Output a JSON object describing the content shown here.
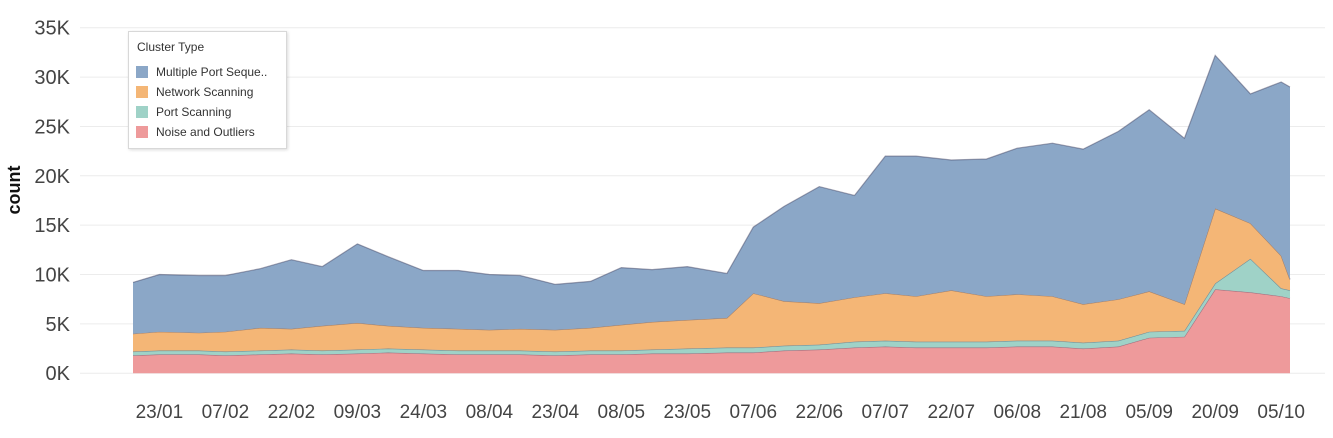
{
  "chart_data": {
    "type": "area",
    "stacked": true,
    "ylabel": "count",
    "xlabel": "",
    "ylim": [
      -1500,
      37000
    ],
    "yticks": [
      {
        "value": 0,
        "label": "0K"
      },
      {
        "value": 5000,
        "label": "5K"
      },
      {
        "value": 10000,
        "label": "10K"
      },
      {
        "value": 15000,
        "label": "15K"
      },
      {
        "value": 20000,
        "label": "20K"
      },
      {
        "value": 25000,
        "label": "25K"
      },
      {
        "value": 30000,
        "label": "30K"
      },
      {
        "value": 35000,
        "label": "35K"
      }
    ],
    "grid": true,
    "x": [
      "17/01",
      "23/01",
      "01/02",
      "07/02",
      "15/02",
      "22/02",
      "01/03",
      "09/03",
      "16/03",
      "24/03",
      "01/04",
      "08/04",
      "15/04",
      "23/04",
      "01/05",
      "08/05",
      "15/05",
      "23/05",
      "01/06",
      "07/06",
      "14/06",
      "22/06",
      "30/06",
      "07/07",
      "14/07",
      "22/07",
      "30/07",
      "06/08",
      "14/08",
      "21/08",
      "29/08",
      "05/09",
      "13/09",
      "20/09",
      "28/09",
      "05/10",
      "07/10"
    ],
    "xticks": [
      "23/01",
      "07/02",
      "22/02",
      "09/03",
      "24/03",
      "08/04",
      "23/04",
      "08/05",
      "23/05",
      "07/06",
      "22/06",
      "07/07",
      "22/07",
      "06/08",
      "21/08",
      "05/09",
      "20/09",
      "05/10"
    ],
    "series": [
      {
        "name": "Noise and Outliers",
        "color": "#ee9a9b",
        "values": [
          1800,
          1900,
          1900,
          1800,
          1900,
          2000,
          1900,
          2000,
          2100,
          2000,
          1900,
          1900,
          1900,
          1800,
          1900,
          1900,
          2000,
          2000,
          2100,
          2100,
          2300,
          2400,
          2600,
          2700,
          2600,
          2600,
          2600,
          2700,
          2700,
          2500,
          2700,
          3600,
          3700,
          8500,
          8200,
          7800,
          7600
        ]
      },
      {
        "name": "Port Scanning",
        "color": "#9fd2c7",
        "values": [
          400,
          400,
          400,
          400,
          400,
          400,
          400,
          400,
          400,
          400,
          400,
          400,
          400,
          400,
          400,
          400,
          400,
          500,
          500,
          500,
          500,
          500,
          600,
          600,
          600,
          600,
          600,
          600,
          600,
          600,
          600,
          600,
          600,
          600,
          3400,
          800,
          800
        ]
      },
      {
        "name": "Network Scanning",
        "color": "#f4b676",
        "values": [
          1800,
          1900,
          1800,
          2000,
          2300,
          2100,
          2500,
          2700,
          2300,
          2200,
          2200,
          2100,
          2200,
          2200,
          2300,
          2600,
          2800,
          2900,
          3000,
          5500,
          4500,
          4200,
          4500,
          4800,
          4600,
          5200,
          4600,
          4700,
          4500,
          3900,
          4200,
          4100,
          2700,
          7600,
          3600,
          3300,
          1100
        ]
      },
      {
        "name": "Multiple Port Sequence",
        "color": "#8ba7c7",
        "values": [
          5200,
          5800,
          5800,
          5700,
          6000,
          7000,
          6000,
          8000,
          7000,
          5800,
          5900,
          5600,
          5400,
          4600,
          4700,
          5800,
          5300,
          5400,
          4500,
          6700,
          9600,
          11800,
          10300,
          13900,
          14200,
          13200,
          13900,
          14800,
          15500,
          15700,
          17000,
          18400,
          16800,
          15500,
          13100,
          17600,
          19500
        ]
      }
    ]
  },
  "legend": {
    "title": "Cluster Type",
    "items": [
      {
        "label": "Multiple Port Seque..",
        "color": "#8ba7c7"
      },
      {
        "label": "Network Scanning",
        "color": "#f4b676"
      },
      {
        "label": "Port Scanning",
        "color": "#9fd2c7"
      },
      {
        "label": "Noise and Outliers",
        "color": "#ee9a9b"
      }
    ]
  }
}
